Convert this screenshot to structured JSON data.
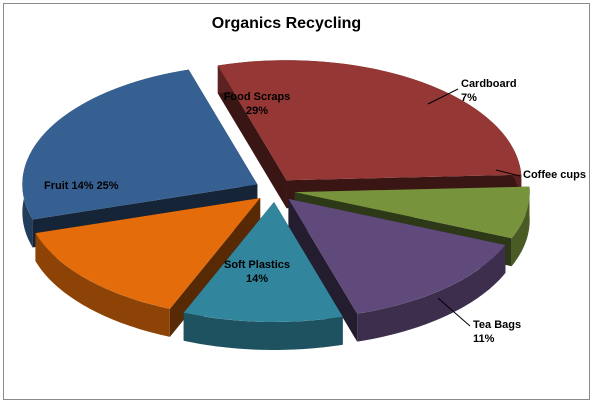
{
  "chart_data": {
    "type": "pie",
    "title": "Organics Recycling",
    "slices": [
      {
        "label": "Food Scraps",
        "percent_text": "29%",
        "value": 29,
        "color": "#953735"
      },
      {
        "label": "Cardboard",
        "percent_text": "7%",
        "value": 7,
        "color": "#77933c"
      },
      {
        "label": "Coffee cups",
        "percent_text": "",
        "value": 14,
        "color": "#604a7b"
      },
      {
        "label": "Tea Bags",
        "percent_text": "11%",
        "value": 11,
        "color": "#31859c"
      },
      {
        "label": "Soft Plastics",
        "percent_text": "14%",
        "value": 14,
        "color": "#e46c0a"
      },
      {
        "label": "Fruit 14% 25%",
        "percent_text": "",
        "value": 25,
        "color": "#376092"
      }
    ],
    "exploded": true,
    "three_d": true
  }
}
